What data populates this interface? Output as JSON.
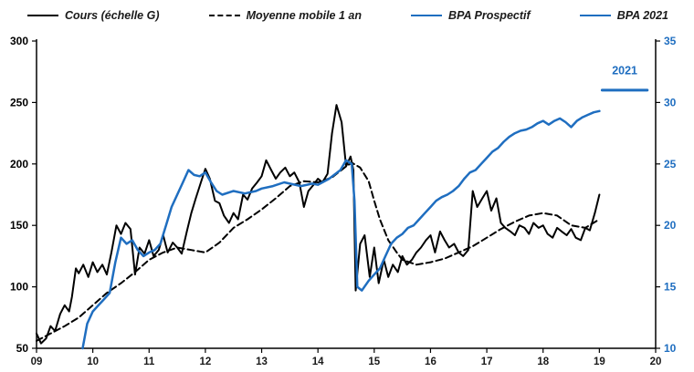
{
  "colors": {
    "accent_blue": "#1F6EC0",
    "line_black": "#000000"
  },
  "legend": {
    "items": [
      {
        "label": "Cours (échelle G)",
        "color": "#000000",
        "style": "solid"
      },
      {
        "label": "Moyenne mobile 1 an",
        "color": "#000000",
        "style": "dashed"
      },
      {
        "label": "BPA Prospectif",
        "color": "#1F6EC0",
        "style": "solid"
      },
      {
        "label": "BPA 2021",
        "color": "#1F6EC0",
        "style": "solid"
      }
    ]
  },
  "chart_data": {
    "type": "line",
    "title": "",
    "grid": false,
    "legend_position": "top",
    "x_axis": {
      "min": 9,
      "max": 20,
      "tick_values": [
        9,
        10,
        11,
        12,
        13,
        14,
        15,
        16,
        17,
        18,
        19,
        20
      ],
      "tick_labels": [
        "09",
        "10",
        "11",
        "12",
        "13",
        "14",
        "15",
        "16",
        "17",
        "18",
        "19",
        "20"
      ]
    },
    "left_axis": {
      "min": 50,
      "max": 300,
      "ticks": [
        50,
        100,
        150,
        200,
        250,
        300
      ],
      "color": "#000000"
    },
    "right_axis": {
      "min": 10,
      "max": 35,
      "ticks": [
        10,
        15,
        20,
        25,
        30,
        35
      ],
      "color": "#1F6EC0"
    },
    "annotation": {
      "text": "2021",
      "x": 19.45,
      "y": 32.3,
      "axis": "right",
      "color": "#1F6EC0"
    },
    "series": [
      {
        "id": "cours",
        "name": "Cours (échelle G)",
        "axis": "left",
        "color": "#000000",
        "dash": "",
        "width": 2,
        "points": [
          [
            9.0,
            62
          ],
          [
            9.08,
            54
          ],
          [
            9.17,
            58
          ],
          [
            9.25,
            68
          ],
          [
            9.33,
            64
          ],
          [
            9.42,
            78
          ],
          [
            9.5,
            85
          ],
          [
            9.58,
            80
          ],
          [
            9.63,
            92
          ],
          [
            9.7,
            115
          ],
          [
            9.75,
            111
          ],
          [
            9.83,
            118
          ],
          [
            9.92,
            108
          ],
          [
            10.0,
            120
          ],
          [
            10.08,
            112
          ],
          [
            10.17,
            118
          ],
          [
            10.25,
            110
          ],
          [
            10.33,
            128
          ],
          [
            10.42,
            150
          ],
          [
            10.5,
            143
          ],
          [
            10.58,
            152
          ],
          [
            10.67,
            147
          ],
          [
            10.75,
            110
          ],
          [
            10.83,
            132
          ],
          [
            10.92,
            127
          ],
          [
            11.0,
            138
          ],
          [
            11.08,
            125
          ],
          [
            11.17,
            130
          ],
          [
            11.25,
            142
          ],
          [
            11.33,
            128
          ],
          [
            11.42,
            136
          ],
          [
            11.5,
            132
          ],
          [
            11.58,
            127
          ],
          [
            11.67,
            145
          ],
          [
            11.75,
            160
          ],
          [
            11.83,
            172
          ],
          [
            11.92,
            185
          ],
          [
            12.0,
            196
          ],
          [
            12.08,
            188
          ],
          [
            12.17,
            170
          ],
          [
            12.25,
            168
          ],
          [
            12.33,
            158
          ],
          [
            12.42,
            152
          ],
          [
            12.5,
            160
          ],
          [
            12.58,
            155
          ],
          [
            12.67,
            175
          ],
          [
            12.75,
            171
          ],
          [
            12.83,
            180
          ],
          [
            12.92,
            185
          ],
          [
            13.0,
            190
          ],
          [
            13.08,
            203
          ],
          [
            13.17,
            195
          ],
          [
            13.25,
            188
          ],
          [
            13.33,
            193
          ],
          [
            13.42,
            197
          ],
          [
            13.5,
            190
          ],
          [
            13.58,
            193
          ],
          [
            13.67,
            185
          ],
          [
            13.75,
            165
          ],
          [
            13.83,
            178
          ],
          [
            13.92,
            183
          ],
          [
            14.0,
            188
          ],
          [
            14.08,
            185
          ],
          [
            14.17,
            192
          ],
          [
            14.25,
            225
          ],
          [
            14.33,
            248
          ],
          [
            14.42,
            234
          ],
          [
            14.5,
            198
          ],
          [
            14.58,
            206
          ],
          [
            14.63,
            195
          ],
          [
            14.67,
            97
          ],
          [
            14.75,
            135
          ],
          [
            14.83,
            142
          ],
          [
            14.92,
            108
          ],
          [
            15.0,
            132
          ],
          [
            15.08,
            103
          ],
          [
            15.17,
            122
          ],
          [
            15.25,
            108
          ],
          [
            15.33,
            118
          ],
          [
            15.42,
            112
          ],
          [
            15.5,
            125
          ],
          [
            15.58,
            118
          ],
          [
            15.67,
            122
          ],
          [
            15.75,
            128
          ],
          [
            15.83,
            132
          ],
          [
            15.92,
            138
          ],
          [
            16.0,
            142
          ],
          [
            16.08,
            128
          ],
          [
            16.17,
            145
          ],
          [
            16.25,
            138
          ],
          [
            16.33,
            132
          ],
          [
            16.42,
            135
          ],
          [
            16.5,
            128
          ],
          [
            16.58,
            125
          ],
          [
            16.67,
            130
          ],
          [
            16.75,
            178
          ],
          [
            16.83,
            165
          ],
          [
            16.92,
            172
          ],
          [
            17.0,
            178
          ],
          [
            17.08,
            162
          ],
          [
            17.17,
            172
          ],
          [
            17.25,
            152
          ],
          [
            17.33,
            148
          ],
          [
            17.42,
            145
          ],
          [
            17.5,
            142
          ],
          [
            17.58,
            150
          ],
          [
            17.67,
            148
          ],
          [
            17.75,
            143
          ],
          [
            17.83,
            152
          ],
          [
            17.92,
            148
          ],
          [
            18.0,
            150
          ],
          [
            18.08,
            143
          ],
          [
            18.17,
            140
          ],
          [
            18.25,
            148
          ],
          [
            18.33,
            145
          ],
          [
            18.42,
            142
          ],
          [
            18.5,
            147
          ],
          [
            18.58,
            140
          ],
          [
            18.67,
            138
          ],
          [
            18.75,
            148
          ],
          [
            18.83,
            146
          ],
          [
            18.92,
            160
          ],
          [
            19.0,
            175
          ]
        ]
      },
      {
        "id": "moyenne-mobile",
        "name": "Moyenne mobile 1 an",
        "axis": "left",
        "color": "#000000",
        "dash": "7,4",
        "width": 2,
        "points": [
          [
            9.0,
            56
          ],
          [
            9.25,
            62
          ],
          [
            9.5,
            68
          ],
          [
            9.75,
            75
          ],
          [
            10.0,
            85
          ],
          [
            10.25,
            95
          ],
          [
            10.5,
            103
          ],
          [
            10.75,
            112
          ],
          [
            11.0,
            122
          ],
          [
            11.25,
            128
          ],
          [
            11.5,
            132
          ],
          [
            11.75,
            130
          ],
          [
            12.0,
            128
          ],
          [
            12.25,
            136
          ],
          [
            12.5,
            148
          ],
          [
            12.75,
            155
          ],
          [
            13.0,
            163
          ],
          [
            13.25,
            172
          ],
          [
            13.5,
            182
          ],
          [
            13.75,
            186
          ],
          [
            14.0,
            185
          ],
          [
            14.25,
            189
          ],
          [
            14.5,
            198
          ],
          [
            14.6,
            201
          ],
          [
            14.75,
            197
          ],
          [
            14.9,
            186
          ],
          [
            15.0,
            170
          ],
          [
            15.1,
            155
          ],
          [
            15.25,
            138
          ],
          [
            15.4,
            128
          ],
          [
            15.5,
            122
          ],
          [
            15.75,
            118
          ],
          [
            16.0,
            120
          ],
          [
            16.25,
            123
          ],
          [
            16.5,
            128
          ],
          [
            16.75,
            133
          ],
          [
            17.0,
            140
          ],
          [
            17.25,
            147
          ],
          [
            17.5,
            153
          ],
          [
            17.75,
            158
          ],
          [
            18.0,
            160
          ],
          [
            18.25,
            158
          ],
          [
            18.5,
            150
          ],
          [
            18.75,
            148
          ],
          [
            19.0,
            155
          ]
        ]
      },
      {
        "id": "bpa-prospectif",
        "name": "BPA Prospectif",
        "axis": "right",
        "color": "#1F6EC0",
        "dash": "",
        "width": 2.5,
        "points": [
          [
            9.82,
            10
          ],
          [
            9.9,
            12
          ],
          [
            10.0,
            13
          ],
          [
            10.1,
            13.5
          ],
          [
            10.2,
            14
          ],
          [
            10.3,
            14.5
          ],
          [
            10.4,
            17
          ],
          [
            10.5,
            19
          ],
          [
            10.6,
            18.5
          ],
          [
            10.7,
            18.8
          ],
          [
            10.8,
            18
          ],
          [
            10.9,
            17.5
          ],
          [
            11.0,
            17.8
          ],
          [
            11.1,
            18
          ],
          [
            11.2,
            18.5
          ],
          [
            11.3,
            20
          ],
          [
            11.4,
            21.5
          ],
          [
            11.5,
            22.5
          ],
          [
            11.6,
            23.5
          ],
          [
            11.7,
            24.5
          ],
          [
            11.8,
            24.1
          ],
          [
            11.9,
            24
          ],
          [
            12.0,
            24.3
          ],
          [
            12.1,
            23.5
          ],
          [
            12.2,
            22.8
          ],
          [
            12.3,
            22.5
          ],
          [
            12.5,
            22.8
          ],
          [
            12.7,
            22.6
          ],
          [
            12.9,
            22.8
          ],
          [
            13.0,
            23
          ],
          [
            13.2,
            23.2
          ],
          [
            13.4,
            23.5
          ],
          [
            13.5,
            23.4
          ],
          [
            13.7,
            23.2
          ],
          [
            13.9,
            23.4
          ],
          [
            14.0,
            23.3
          ],
          [
            14.2,
            23.8
          ],
          [
            14.4,
            24.5
          ],
          [
            14.5,
            25.3
          ],
          [
            14.6,
            25
          ],
          [
            14.65,
            22
          ],
          [
            14.7,
            15
          ],
          [
            14.78,
            14.7
          ],
          [
            14.9,
            15.5
          ],
          [
            15.0,
            16
          ],
          [
            15.1,
            16.5
          ],
          [
            15.2,
            17.5
          ],
          [
            15.3,
            18.5
          ],
          [
            15.4,
            19
          ],
          [
            15.5,
            19.3
          ],
          [
            15.6,
            19.8
          ],
          [
            15.7,
            20
          ],
          [
            15.8,
            20.5
          ],
          [
            15.9,
            21
          ],
          [
            16.0,
            21.5
          ],
          [
            16.1,
            22
          ],
          [
            16.2,
            22.3
          ],
          [
            16.3,
            22.5
          ],
          [
            16.4,
            22.8
          ],
          [
            16.5,
            23.2
          ],
          [
            16.6,
            23.8
          ],
          [
            16.7,
            24.3
          ],
          [
            16.8,
            24.5
          ],
          [
            16.9,
            25
          ],
          [
            17.0,
            25.5
          ],
          [
            17.1,
            26
          ],
          [
            17.2,
            26.3
          ],
          [
            17.3,
            26.8
          ],
          [
            17.4,
            27.2
          ],
          [
            17.5,
            27.5
          ],
          [
            17.6,
            27.7
          ],
          [
            17.7,
            27.8
          ],
          [
            17.8,
            28
          ],
          [
            17.9,
            28.3
          ],
          [
            18.0,
            28.5
          ],
          [
            18.1,
            28.2
          ],
          [
            18.2,
            28.5
          ],
          [
            18.3,
            28.7
          ],
          [
            18.4,
            28.4
          ],
          [
            18.5,
            28
          ],
          [
            18.6,
            28.5
          ],
          [
            18.7,
            28.8
          ],
          [
            18.8,
            29
          ],
          [
            18.9,
            29.2
          ],
          [
            19.0,
            29.3
          ]
        ]
      },
      {
        "id": "bpa-2021",
        "name": "BPA 2021",
        "axis": "right",
        "color": "#1F6EC0",
        "dash": "",
        "width": 3,
        "points": [
          [
            19.05,
            31
          ],
          [
            19.85,
            31
          ]
        ]
      }
    ]
  }
}
